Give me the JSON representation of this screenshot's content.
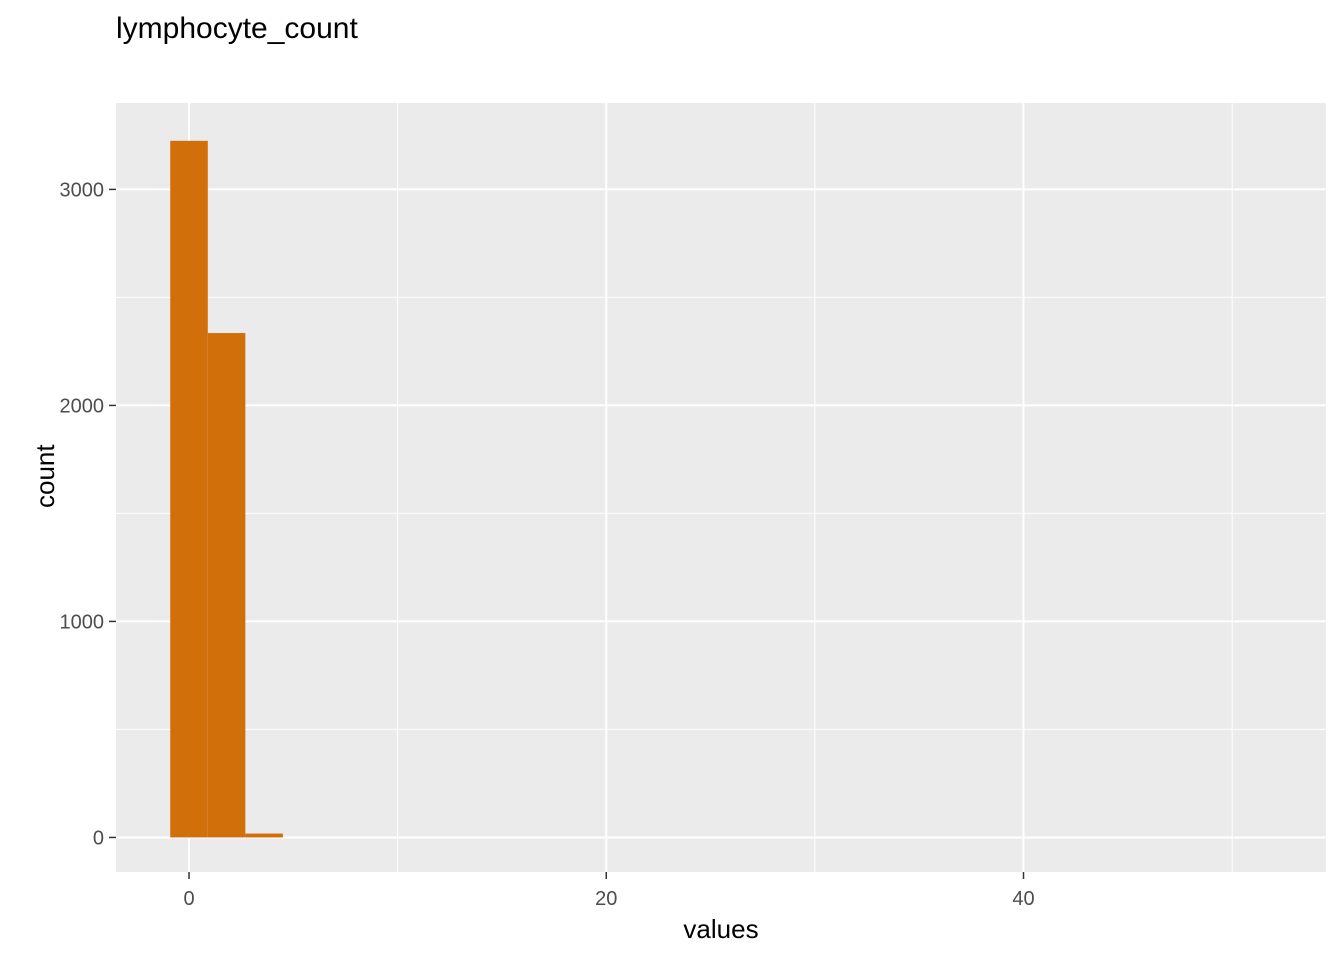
{
  "chart_data": {
    "type": "bar",
    "title": "lymphocyte_count",
    "xlabel": "values",
    "ylabel": "count",
    "bar_color": "#D16F0B",
    "panel_color": "#EBEBEB",
    "grid": true,
    "xlim": [
      -3.5,
      54.5
    ],
    "ylim": [
      -160,
      3400
    ],
    "x_ticks": [
      0,
      20,
      40
    ],
    "x_minor_ticks": [
      10,
      30,
      50
    ],
    "y_ticks": [
      0,
      1000,
      2000,
      3000
    ],
    "y_minor_ticks": [
      500,
      1500,
      2500
    ],
    "bins": [
      {
        "x0": -0.9,
        "x1": 0.9,
        "count": 3225
      },
      {
        "x0": 0.9,
        "x1": 2.7,
        "count": 2335
      },
      {
        "x0": 2.7,
        "x1": 4.5,
        "count": 18
      }
    ]
  }
}
